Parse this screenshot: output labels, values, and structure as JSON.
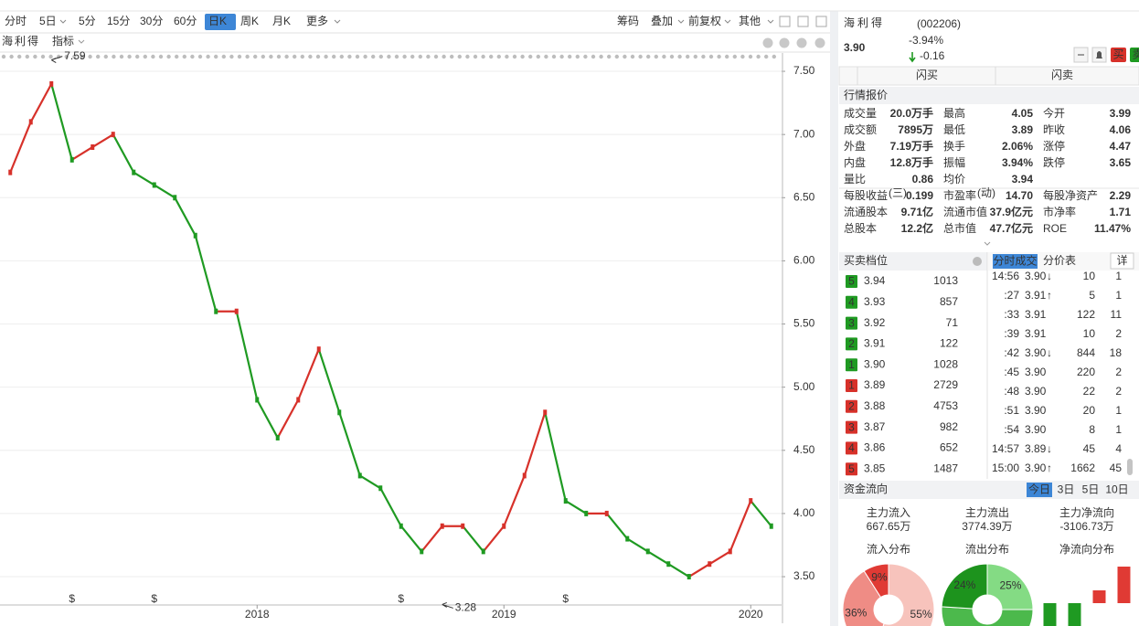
{
  "toolbar": {
    "periods": [
      "分时",
      "5日",
      "5分",
      "15分",
      "30分",
      "60分",
      "日K",
      "周K",
      "月K",
      "更多"
    ],
    "active": 6,
    "tools": [
      "筹码",
      "叠加",
      "前复权",
      "其他"
    ],
    "tools_active": 2
  },
  "chart": {
    "type": "candlestick",
    "name": "海利得",
    "indicator": "指标",
    "categories": [
      null,
      null,
      null,
      null,
      null,
      null,
      null,
      null,
      null,
      null,
      null,
      null,
      "2018",
      null,
      null,
      null,
      null,
      null,
      null,
      null,
      null,
      null,
      null,
      null,
      "2019",
      null,
      null,
      null,
      null,
      null,
      null,
      null,
      null,
      null,
      null,
      null,
      "2020",
      null
    ],
    "values": [
      6.7,
      7.1,
      7.4,
      6.8,
      6.9,
      7.0,
      6.7,
      6.6,
      6.5,
      6.2,
      5.6,
      5.6,
      4.9,
      4.6,
      4.9,
      5.3,
      4.8,
      4.3,
      4.2,
      3.9,
      3.7,
      3.9,
      3.9,
      3.7,
      3.9,
      4.3,
      4.8,
      4.1,
      4.0,
      4.0,
      3.8,
      3.7,
      3.6,
      3.5,
      3.6,
      3.7,
      4.1,
      3.9
    ],
    "up_color": "#d7312a",
    "down_color": "#1f9a22",
    "ylim": [
      3.276,
      7.645
    ],
    "yticks": [
      {
        "value": 3.5,
        "label": "3.50"
      },
      {
        "value": 4.0,
        "label": "4.00"
      },
      {
        "value": 4.5,
        "label": "4.50"
      },
      {
        "value": 5.0,
        "label": "5.00"
      },
      {
        "value": 5.5,
        "label": "5.50"
      },
      {
        "value": 6.0,
        "label": "6.00"
      },
      {
        "value": 6.5,
        "label": "6.50"
      },
      {
        "value": 7.0,
        "label": "7.00"
      },
      {
        "value": 7.5,
        "label": "7.50"
      }
    ],
    "grid": true,
    "high": {
      "value": 7.59,
      "index": 2
    },
    "low": {
      "value": 3.28,
      "index": 21
    },
    "event_markers": {
      "label": "$",
      "indices": [
        3,
        7,
        19,
        27
      ]
    }
  },
  "quote": {
    "name": "海利得",
    "code": "(002206)",
    "price": "3.90",
    "change_pct": "-3.94%",
    "change": "-0.16",
    "buy_button": "买",
    "sell_button": "卖",
    "flash_buy": "闪买",
    "flash_sell": "闪卖"
  },
  "quote_table": {
    "title": "行情报价",
    "rows": [
      [
        {
          "label": "成交量",
          "value": "20.0万手",
          "color": "#111"
        },
        {
          "label": "最高",
          "value": "4.05",
          "color": "#1f9a22"
        },
        {
          "label": "今开",
          "value": "3.99",
          "color": "#1f9a22"
        }
      ],
      [
        {
          "label": "成交额",
          "value": "7895万",
          "color": "#111"
        },
        {
          "label": "最低",
          "value": "3.89",
          "color": "#1f9a22"
        },
        {
          "label": "昨收",
          "value": "4.06",
          "color": "#111"
        }
      ],
      [
        {
          "label": "外盘",
          "value": "7.19万手",
          "color": "#d7312a"
        },
        {
          "label": "换手",
          "value": "2.06%",
          "color": "#111"
        },
        {
          "label": "涨停",
          "value": "4.47",
          "color": "#d7312a"
        }
      ],
      [
        {
          "label": "内盘",
          "value": "12.8万手",
          "color": "#1f9a22"
        },
        {
          "label": "振幅",
          "value": "3.94%",
          "color": "#111"
        },
        {
          "label": "跌停",
          "value": "3.65",
          "color": "#1f9a22"
        }
      ],
      [
        {
          "label": "量比",
          "value": "0.86",
          "color": "#111"
        },
        {
          "label": "均价",
          "value": "3.94",
          "color": "#1f9a22"
        }
      ]
    ],
    "fundamentals": [
      [
        {
          "label": "每股收益",
          "note": "(三)",
          "value": "0.199"
        },
        {
          "label": "市盈率",
          "note": "(动)",
          "value": "14.70"
        },
        {
          "label": "每股净资产",
          "value": "2.29"
        }
      ],
      [
        {
          "label": "流通股本",
          "value": "9.71亿"
        },
        {
          "label": "流通市值",
          "value": "37.9亿元"
        },
        {
          "label": "市净率",
          "value": "1.71"
        }
      ],
      [
        {
          "label": "总股本",
          "value": "12.2亿"
        },
        {
          "label": "总市值",
          "value": "47.7亿元"
        },
        {
          "label": "ROE",
          "value": "11.47%"
        }
      ]
    ]
  },
  "order_book": {
    "title": "买卖档位",
    "sell": [
      [
        "5",
        "3.94",
        "1013"
      ],
      [
        "4",
        "3.93",
        "857"
      ],
      [
        "3",
        "3.92",
        "71"
      ],
      [
        "2",
        "3.91",
        "122"
      ],
      [
        "1",
        "3.90",
        "1028"
      ]
    ],
    "buy": [
      [
        "1",
        "3.89",
        "2729"
      ],
      [
        "2",
        "3.88",
        "4753"
      ],
      [
        "3",
        "3.87",
        "982"
      ],
      [
        "4",
        "3.86",
        "652"
      ],
      [
        "5",
        "3.85",
        "1487"
      ]
    ],
    "price_color": "#1f9a22"
  },
  "trades": {
    "tabs": [
      "分时成交",
      "分价表"
    ],
    "detail": "详",
    "rows": [
      {
        "time": "14:56",
        "price": "3.90",
        "arrow": "↓",
        "volume": "10",
        "count": "1",
        "color": "#1f9a22"
      },
      {
        "time": ":27",
        "price": "3.91",
        "arrow": "↑",
        "volume": "5",
        "count": "1",
        "color": "#d7312a"
      },
      {
        "time": ":33",
        "price": "3.91",
        "volume": "122",
        "count": "11",
        "color": "#d7312a"
      },
      {
        "time": ":39",
        "price": "3.91",
        "volume": "10",
        "count": "2",
        "color": "#d7312a"
      },
      {
        "time": ":42",
        "price": "3.90",
        "arrow": "↓",
        "volume": "844",
        "count": "18",
        "color": "#1f9a22"
      },
      {
        "time": ":45",
        "price": "3.90",
        "volume": "220",
        "count": "2",
        "color": "#d7312a"
      },
      {
        "time": ":48",
        "price": "3.90",
        "volume": "22",
        "count": "2",
        "color": "#d7312a"
      },
      {
        "time": ":51",
        "price": "3.90",
        "volume": "20",
        "count": "1",
        "color": "#d7312a"
      },
      {
        "time": ":54",
        "price": "3.90",
        "volume": "8",
        "count": "1",
        "color": "#d7312a"
      },
      {
        "time": "14:57",
        "price": "3.89",
        "arrow": "↓",
        "volume": "45",
        "count": "4",
        "color": "#1f9a22"
      },
      {
        "time": "15:00",
        "price": "3.90",
        "arrow": "↑",
        "volume": "1662",
        "count": "45",
        "color": "#d7312a"
      }
    ]
  },
  "capital_flow": {
    "title": "资金流向",
    "tabs": [
      "今日",
      "3日",
      "5日",
      "10日"
    ],
    "active": 0,
    "stats": [
      {
        "label": "主力流入",
        "value": "667.65万",
        "color": "#d7312a"
      },
      {
        "label": "主力流出",
        "value": "3774.39万",
        "color": "#1f9a22"
      },
      {
        "label": "主力净流向",
        "value": "-3106.73万",
        "color": "#1f9a22"
      }
    ],
    "charts": [
      {
        "type": "pie",
        "title": "流入分布",
        "values": [
          55,
          36,
          9
        ],
        "value_labels": [
          "55%",
          "36%",
          "9%"
        ],
        "colors": [
          "#f7c3bc",
          "#ef8c85",
          "#e03a34"
        ]
      },
      {
        "type": "pie",
        "title": "流出分布",
        "values": [
          25,
          51,
          24
        ],
        "value_labels": [
          "25%",
          null,
          "24%"
        ],
        "colors": [
          "#84db84",
          "#4cb94c",
          "#1d931d"
        ]
      },
      {
        "type": "bar",
        "title": "净流向分布",
        "values": [
          -30,
          -28,
          14,
          40
        ],
        "up_color": "#e03a34",
        "down_color": "#1f9a22"
      }
    ]
  }
}
